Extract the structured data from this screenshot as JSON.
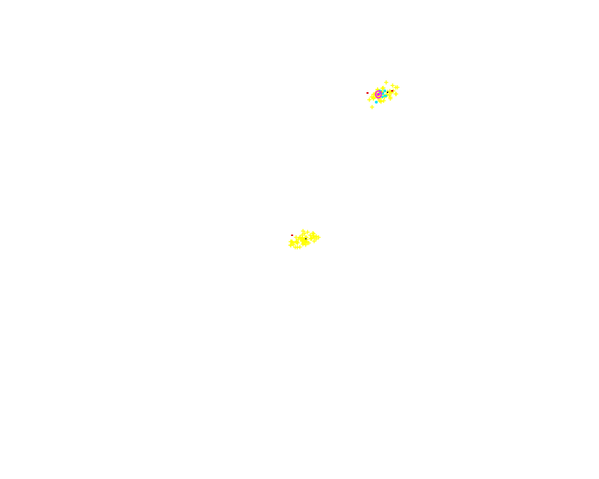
{
  "canvas": {
    "background": "#ffffff"
  },
  "palette": {
    "yellow": "#ffff00",
    "cyan": "#00e5ff",
    "magenta": "#ff00ff",
    "red": "#e00000",
    "orange": "#ffb000"
  },
  "clusters": [
    {
      "name": "upper-right-cluster",
      "dominant_color": "yellow",
      "has_magenta_core": true
    },
    {
      "name": "center-cluster",
      "dominant_color": "yellow",
      "has_magenta_core": false
    }
  ]
}
